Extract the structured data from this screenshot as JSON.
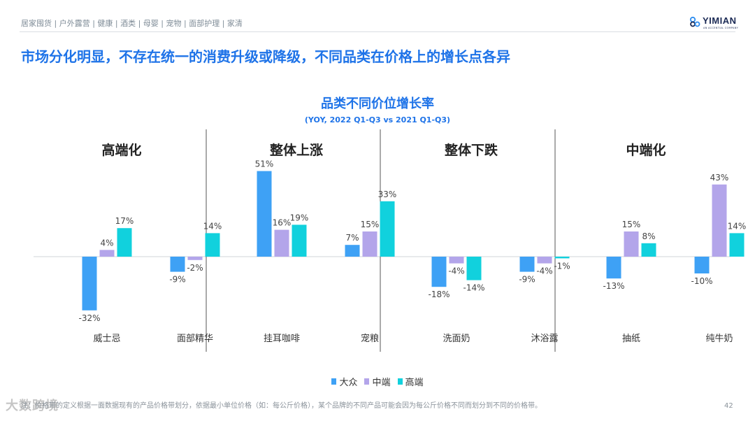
{
  "breadcrumb": "居家囤货 | 户外露营 | 健康 | 酒类 | 母婴 | 宠物 | 面部护理 | 家清",
  "brand": {
    "name": "YIMIAN",
    "tagline": "AN ACCENTIAL COMPANY"
  },
  "headline": "市场分化明显，不存在统一的消费升级或降级，不同品类在价格上的增长点各异",
  "watermark": "大数跨境",
  "footnote": "注：价格带的定义根据一面数据现有的产品价格带划分，依据最小单位价格（如：每公斤价格），某个品牌的不同产品可能会因为每公斤价格不同而划分到不同的价格带。",
  "page_number": "42",
  "colors": {
    "mass": "#3ea1f5",
    "mid": "#b3a5ea",
    "high": "#11d1dd",
    "title": "#1e73e8"
  },
  "chart_data": {
    "type": "bar",
    "title": "品类不同价位增长率",
    "subtitle": "(YOY, 2022 Q1-Q3 vs 2021 Q1-Q3)",
    "unit": "%",
    "ylim": [
      -35,
      55
    ],
    "series_names": [
      "大众",
      "中端",
      "高端"
    ],
    "groups": [
      {
        "label": "高端化",
        "categories": [
          {
            "name": "威士忌",
            "values": [
              -32,
              4,
              17
            ]
          },
          {
            "name": "面部精华",
            "values": [
              -9,
              -2,
              14
            ]
          }
        ]
      },
      {
        "label": "整体上涨",
        "categories": [
          {
            "name": "挂耳咖啡",
            "values": [
              51,
              16,
              19
            ]
          },
          {
            "name": "宠粮",
            "values": [
              7,
              15,
              33
            ]
          }
        ]
      },
      {
        "label": "整体下跌",
        "categories": [
          {
            "name": "洗面奶",
            "values": [
              -18,
              -4,
              -14
            ]
          },
          {
            "name": "沐浴露",
            "values": [
              -9,
              -4,
              -1
            ]
          }
        ]
      },
      {
        "label": "中端化",
        "categories": [
          {
            "name": "抽纸",
            "values": [
              -13,
              15,
              8
            ]
          },
          {
            "name": "纯牛奶",
            "values": [
              -10,
              43,
              14
            ]
          }
        ]
      }
    ]
  }
}
